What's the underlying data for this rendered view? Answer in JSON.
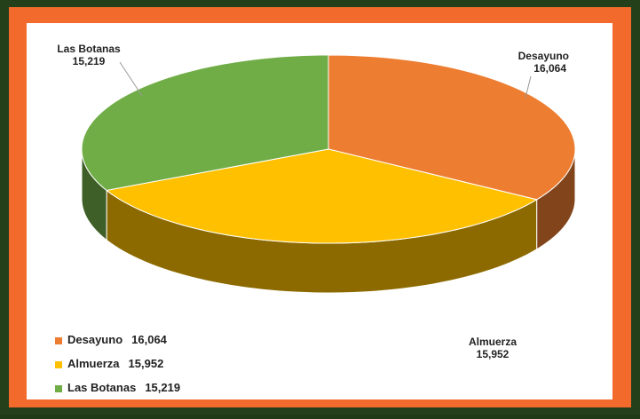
{
  "chart_data": {
    "type": "pie3d",
    "categories": [
      "Desayuno",
      "Almuerza",
      "Las Botanas"
    ],
    "values": [
      16064,
      15952,
      15219
    ],
    "value_labels": [
      "16,064",
      "15,952",
      "15,219"
    ],
    "colors": [
      "#ed7d31",
      "#ffc000",
      "#70ad47"
    ],
    "legend": "bottom-left"
  }
}
